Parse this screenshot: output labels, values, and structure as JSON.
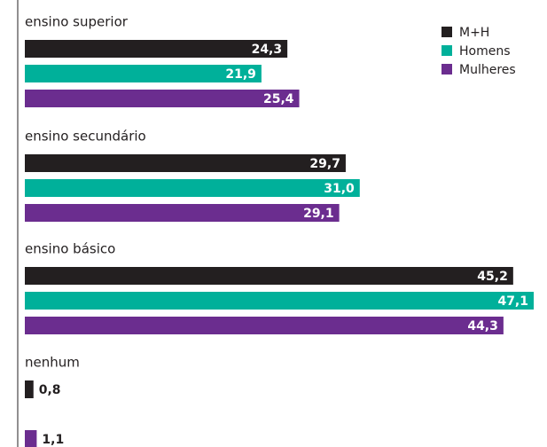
{
  "chart_data": {
    "type": "bar",
    "orientation": "horizontal",
    "categories": [
      "ensino superior",
      "ensino secundário",
      "ensino básico",
      "nenhum"
    ],
    "series": [
      {
        "name": "M+H",
        "color": "#231f20",
        "values": [
          24.3,
          29.7,
          45.2,
          0.8
        ],
        "value_labels": [
          "24,3",
          "29,7",
          "45,2",
          "0,8"
        ]
      },
      {
        "name": "Homens",
        "color": "#00b09a",
        "values": [
          21.9,
          31.0,
          47.1,
          null
        ],
        "value_labels": [
          "21,9",
          "31,0",
          "47,1",
          null
        ]
      },
      {
        "name": "Mulheres",
        "color": "#6b2d8f",
        "values": [
          25.4,
          29.1,
          44.3,
          1.1
        ],
        "value_labels": [
          "25,4",
          "29,1",
          "44,3",
          "1,1"
        ]
      }
    ],
    "legend": "top-right"
  }
}
